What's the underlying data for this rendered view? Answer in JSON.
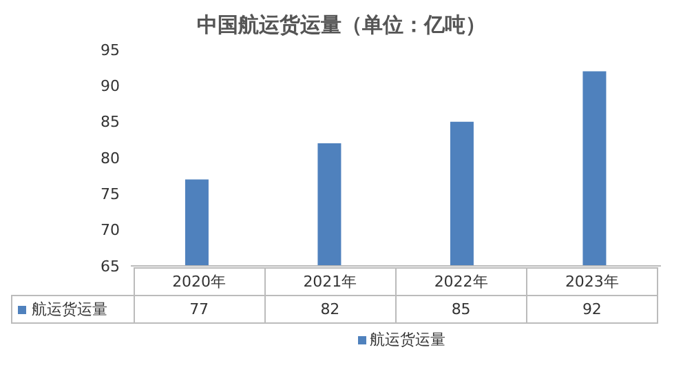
{
  "chart_data": {
    "type": "bar",
    "title": "中国航运货运量（单位：亿吨）",
    "categories": [
      "2020年",
      "2021年",
      "2022年",
      "2023年"
    ],
    "series": [
      {
        "name": "航运货运量",
        "color": "#4f81bd",
        "values": [
          77,
          82,
          85,
          92
        ]
      }
    ],
    "ylim": [
      65,
      95
    ],
    "yticks": [
      65,
      70,
      75,
      80,
      85,
      90,
      95
    ],
    "data_labels": true,
    "legend": "bottom",
    "grid": false
  }
}
